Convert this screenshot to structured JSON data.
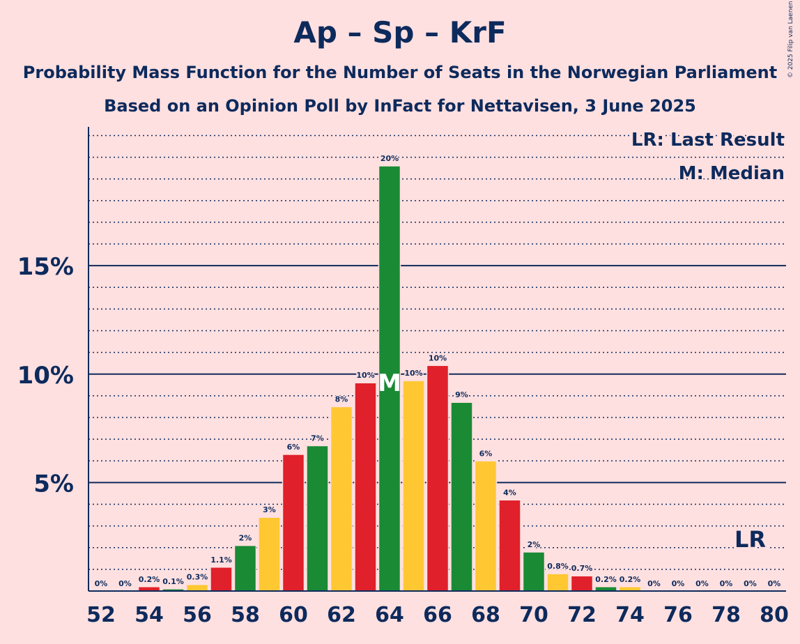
{
  "title": "Ap – Sp – KrF",
  "subtitle1": "Probability Mass Function for the Number of Seats in the Norwegian Parliament",
  "subtitle2": "Based on an Opinion Poll by InFact for Nettavisen, 3 June 2025",
  "copyright": "© 2025 Filip van Laenen",
  "colors": {
    "red": "#e0202a",
    "green": "#1a8a35",
    "yellow": "#ffc833",
    "axis": "#0d2a5c",
    "background": "#ffe0e0"
  },
  "chart_data": {
    "type": "bar",
    "categories": [
      52,
      53,
      54,
      55,
      56,
      57,
      58,
      59,
      60,
      61,
      62,
      63,
      64,
      65,
      66,
      67,
      68,
      69,
      70,
      71,
      72,
      73,
      74,
      75,
      76,
      77,
      78,
      79,
      80
    ],
    "values": [
      0,
      0,
      0.2,
      0.1,
      0.3,
      1.1,
      2.1,
      3.4,
      6.3,
      6.7,
      8.5,
      9.6,
      19.6,
      9.7,
      10.4,
      8.7,
      6.0,
      4.2,
      1.8,
      0.8,
      0.7,
      0.2,
      0.2,
      0,
      0,
      0,
      0,
      0,
      0
    ],
    "labels": [
      "0%",
      "0%",
      "0.2%",
      "0.1%",
      "0.3%",
      "1.1%",
      "2%",
      "3%",
      "6%",
      "7%",
      "8%",
      "10%",
      "20%",
      "10%",
      "10%",
      "9%",
      "6%",
      "4%",
      "2%",
      "0.8%",
      "0.7%",
      "0.2%",
      "0.2%",
      "0%",
      "0%",
      "0%",
      "0%",
      "0%",
      "0%"
    ],
    "bar_colors": [
      "red",
      "green",
      "red",
      "green",
      "yellow",
      "red",
      "green",
      "yellow",
      "red",
      "green",
      "yellow",
      "red",
      "green",
      "yellow",
      "red",
      "green",
      "yellow",
      "red",
      "green",
      "yellow",
      "red",
      "green",
      "yellow",
      "red",
      "green",
      "yellow",
      "red",
      "green",
      "yellow"
    ],
    "x_tick_labels": [
      "52",
      "54",
      "56",
      "58",
      "60",
      "62",
      "64",
      "66",
      "68",
      "70",
      "72",
      "74",
      "76",
      "78",
      "80"
    ],
    "y_ticks": [
      5,
      10,
      15
    ],
    "y_tick_labels": [
      "5%",
      "10%",
      "15%"
    ],
    "ylim": [
      0,
      21.4
    ],
    "median_seat": 64,
    "median_marker": "M",
    "last_result_seat": 79,
    "last_result_marker": "LR",
    "legend": [
      "LR: Last Result",
      "M: Median"
    ],
    "legend_position": "top-right"
  }
}
